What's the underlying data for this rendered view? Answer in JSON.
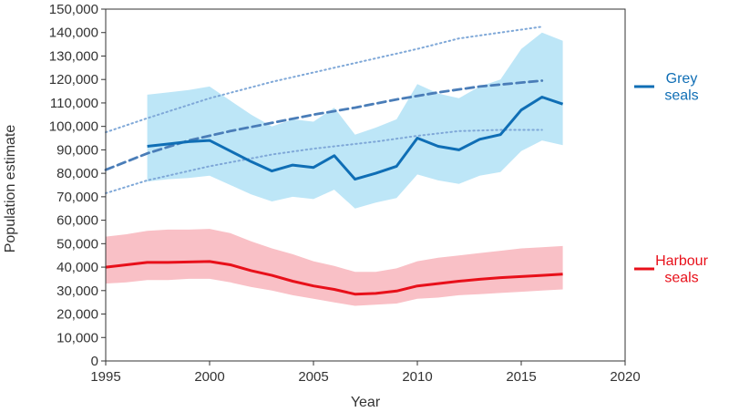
{
  "chart_data": {
    "type": "line",
    "title": "",
    "xlabel": "Year",
    "ylabel": "Population estimate",
    "xlim": [
      1995,
      2020
    ],
    "ylim": [
      0,
      150000
    ],
    "x_ticks": [
      1995,
      2000,
      2005,
      2010,
      2015,
      2020
    ],
    "y_ticks": [
      0,
      10000,
      20000,
      30000,
      40000,
      50000,
      60000,
      70000,
      80000,
      90000,
      100000,
      110000,
      120000,
      130000,
      140000,
      150000
    ],
    "x_tick_labels": [
      "1995",
      "2000",
      "2005",
      "2010",
      "2015",
      "2020"
    ],
    "y_tick_labels": [
      "0",
      "10,000",
      "20,000",
      "30,000",
      "40,000",
      "50,000",
      "60,000",
      "70,000",
      "80,000",
      "90,000",
      "100,000",
      "110,000",
      "120,000",
      "130,000",
      "140,000",
      "150,000"
    ],
    "grid": false,
    "legend_position": "right",
    "series": [
      {
        "name": "Grey seals",
        "legend_lines": [
          "Grey",
          "seals"
        ],
        "color": "#0F6EB5",
        "band_color": "#BDE6F7",
        "x": [
          1997,
          1998,
          1999,
          2000,
          2001,
          2002,
          2003,
          2004,
          2005,
          2006,
          2007,
          2008,
          2009,
          2010,
          2011,
          2012,
          2013,
          2014,
          2015,
          2016,
          2017
        ],
        "values": [
          91500,
          92500,
          93500,
          94000,
          89500,
          85000,
          81000,
          83500,
          82500,
          87500,
          77500,
          80000,
          83000,
          95000,
          91500,
          90000,
          94500,
          96500,
          107000,
          112500,
          109500
        ],
        "lower": [
          76500,
          77500,
          78000,
          79000,
          75000,
          71000,
          68000,
          70000,
          69000,
          73000,
          65000,
          67500,
          69500,
          79500,
          77000,
          75500,
          79000,
          80500,
          89500,
          94000,
          92000
        ],
        "upper": [
          113500,
          114500,
          115500,
          117000,
          111000,
          105000,
          100000,
          103000,
          102000,
          108000,
          96500,
          99500,
          103000,
          118000,
          114000,
          112000,
          117000,
          120000,
          133000,
          140000,
          136500
        ]
      },
      {
        "name": "Harbour seals",
        "legend_lines": [
          "Harbour",
          "seals"
        ],
        "color": "#E8101A",
        "band_color": "#F9C0C6",
        "x": [
          1995,
          1996,
          1997,
          1998,
          1999,
          2000,
          2001,
          2002,
          2003,
          2004,
          2005,
          2006,
          2007,
          2008,
          2009,
          2010,
          2011,
          2012,
          2013,
          2014,
          2015,
          2016,
          2017
        ],
        "values": [
          40000,
          41000,
          42000,
          42000,
          42200,
          42400,
          41000,
          38500,
          36500,
          34000,
          32000,
          30500,
          28500,
          28800,
          29800,
          32000,
          33000,
          34000,
          34800,
          35500,
          36000,
          36500,
          37000
        ],
        "lower": [
          33000,
          33500,
          34500,
          34500,
          35000,
          35000,
          33500,
          31500,
          30000,
          28000,
          26500,
          25000,
          23500,
          24000,
          24500,
          26500,
          27000,
          28000,
          28500,
          29000,
          29500,
          30000,
          30500
        ],
        "upper": [
          53000,
          54000,
          55500,
          56000,
          56000,
          56300,
          54500,
          51000,
          48000,
          45500,
          42500,
          40500,
          38000,
          38000,
          39500,
          42500,
          44000,
          45000,
          46000,
          47000,
          48000,
          48500,
          49000
        ]
      }
    ],
    "trend_lines": [
      {
        "name": "Grey seals trend",
        "style": "dashed",
        "color": "#4A7DB8",
        "x": [
          1995,
          1997,
          1999,
          2001,
          2003,
          2005,
          2007,
          2009,
          2011,
          2013,
          2016
        ],
        "values": [
          81500,
          88500,
          94000,
          98000,
          101500,
          105000,
          108000,
          111500,
          114500,
          117000,
          119500
        ]
      },
      {
        "name": "Grey seals trend upper",
        "style": "dotted",
        "color": "#7FA8D8",
        "x": [
          1995,
          1997,
          2000,
          2003,
          2005,
          2008,
          2010,
          2012,
          2014,
          2016
        ],
        "values": [
          97500,
          103500,
          112000,
          119000,
          123000,
          129000,
          133000,
          137500,
          140000,
          142500
        ]
      },
      {
        "name": "Grey seals trend lower",
        "style": "dotted",
        "color": "#7FA8D8",
        "x": [
          1995,
          1997,
          2000,
          2003,
          2005,
          2008,
          2010,
          2012,
          2014,
          2016
        ],
        "values": [
          71500,
          77000,
          83000,
          88000,
          90500,
          93500,
          96000,
          98000,
          98500,
          98500
        ]
      }
    ]
  }
}
